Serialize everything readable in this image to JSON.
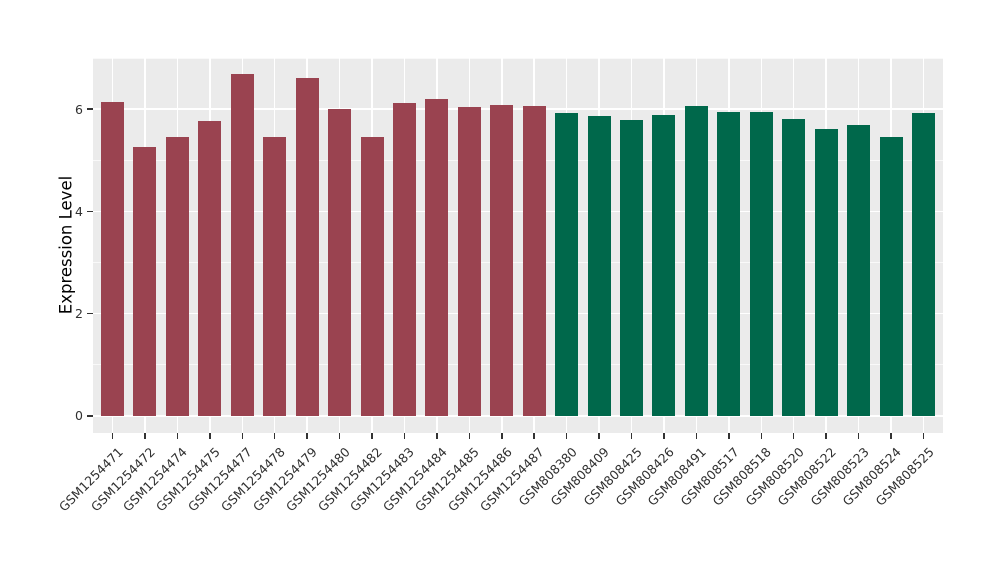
{
  "chart_data": {
    "type": "bar",
    "title": "",
    "xlabel": "",
    "ylabel": "Expression Level",
    "ylim": [
      0,
      7.02
    ],
    "yticks_major": [
      0,
      2,
      4,
      6
    ],
    "yticks_minor": [
      1,
      3,
      5,
      7
    ],
    "grid": "on",
    "legend": "none",
    "panel_bg": "#EBEBEB",
    "grid_color": "#FFFFFF",
    "tick_color": "#333333",
    "x_label_rotation_deg": -45,
    "group_colors": {
      "maroon": "#9A4350",
      "green": "#00684B"
    },
    "categories": [
      "GSM1254471",
      "GSM1254472",
      "GSM1254474",
      "GSM1254475",
      "GSM1254477",
      "GSM1254478",
      "GSM1254479",
      "GSM1254480",
      "GSM1254482",
      "GSM1254483",
      "GSM1254484",
      "GSM1254485",
      "GSM1254486",
      "GSM1254487",
      "GSM808380",
      "GSM808409",
      "GSM808425",
      "GSM808426",
      "GSM808491",
      "GSM808517",
      "GSM808518",
      "GSM808520",
      "GSM808522",
      "GSM808523",
      "GSM808524",
      "GSM808525"
    ],
    "values": [
      6.15,
      5.26,
      5.45,
      5.76,
      6.68,
      5.46,
      6.62,
      6.01,
      5.46,
      6.12,
      6.2,
      6.05,
      6.08,
      6.07,
      5.93,
      5.87,
      5.79,
      5.88,
      6.06,
      5.94,
      5.94,
      5.81,
      5.61,
      5.7,
      5.45,
      5.93
    ],
    "bar_groups": [
      "maroon",
      "maroon",
      "maroon",
      "maroon",
      "maroon",
      "maroon",
      "maroon",
      "maroon",
      "maroon",
      "maroon",
      "maroon",
      "maroon",
      "maroon",
      "maroon",
      "green",
      "green",
      "green",
      "green",
      "green",
      "green",
      "green",
      "green",
      "green",
      "green",
      "green",
      "green"
    ]
  }
}
